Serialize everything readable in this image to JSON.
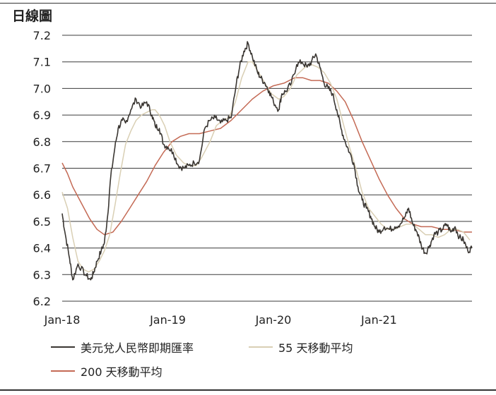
{
  "title": "日線圖",
  "chart_data": {
    "type": "line",
    "title": "日線圖",
    "xlabel": "",
    "ylabel": "",
    "xlim": [
      2018.0,
      2021.88
    ],
    "ylim": [
      6.2,
      7.2
    ],
    "y_ticks": [
      "7.2",
      "7.1",
      "7.0",
      "6.9",
      "6.8",
      "6.7",
      "6.6",
      "6.5",
      "6.4",
      "6.3",
      "6.2"
    ],
    "x_ticks": [
      {
        "label": "Jan-18",
        "x": 2018.0
      },
      {
        "label": "Jan-19",
        "x": 2019.0
      },
      {
        "label": "Jan-20",
        "x": 2020.0
      },
      {
        "label": "Jan-21",
        "x": 2021.0
      }
    ],
    "grid": "horizontal",
    "legend": "bottom",
    "series": [
      {
        "name": "美元兌人民幣即期匯率",
        "color": "#3a3632",
        "noise": 0.012,
        "points": [
          [
            2018.0,
            6.53
          ],
          [
            2018.03,
            6.45
          ],
          [
            2018.07,
            6.36
          ],
          [
            2018.1,
            6.28
          ],
          [
            2018.15,
            6.34
          ],
          [
            2018.22,
            6.3
          ],
          [
            2018.27,
            6.28
          ],
          [
            2018.3,
            6.31
          ],
          [
            2018.33,
            6.35
          ],
          [
            2018.37,
            6.39
          ],
          [
            2018.4,
            6.42
          ],
          [
            2018.43,
            6.52
          ],
          [
            2018.46,
            6.67
          ],
          [
            2018.5,
            6.78
          ],
          [
            2018.53,
            6.85
          ],
          [
            2018.57,
            6.88
          ],
          [
            2018.6,
            6.87
          ],
          [
            2018.65,
            6.92
          ],
          [
            2018.7,
            6.96
          ],
          [
            2018.75,
            6.93
          ],
          [
            2018.8,
            6.95
          ],
          [
            2018.85,
            6.9
          ],
          [
            2018.88,
            6.86
          ],
          [
            2018.92,
            6.85
          ],
          [
            2018.96,
            6.79
          ],
          [
            2019.0,
            6.78
          ],
          [
            2019.05,
            6.76
          ],
          [
            2019.1,
            6.71
          ],
          [
            2019.15,
            6.7
          ],
          [
            2019.2,
            6.71
          ],
          [
            2019.25,
            6.72
          ],
          [
            2019.3,
            6.73
          ],
          [
            2019.35,
            6.85
          ],
          [
            2019.4,
            6.88
          ],
          [
            2019.45,
            6.89
          ],
          [
            2019.5,
            6.87
          ],
          [
            2019.55,
            6.88
          ],
          [
            2019.6,
            6.89
          ],
          [
            2019.65,
            7.02
          ],
          [
            2019.68,
            7.08
          ],
          [
            2019.72,
            7.14
          ],
          [
            2019.76,
            7.17
          ],
          [
            2019.8,
            7.12
          ],
          [
            2019.85,
            7.06
          ],
          [
            2019.88,
            7.04
          ],
          [
            2019.92,
            7.02
          ],
          [
            2019.96,
            6.99
          ],
          [
            2020.0,
            6.95
          ],
          [
            2020.05,
            6.92
          ],
          [
            2020.08,
            6.98
          ],
          [
            2020.12,
            6.99
          ],
          [
            2020.17,
            7.02
          ],
          [
            2020.22,
            7.09
          ],
          [
            2020.27,
            7.1
          ],
          [
            2020.32,
            7.08
          ],
          [
            2020.36,
            7.1
          ],
          [
            2020.4,
            7.13
          ],
          [
            2020.44,
            7.08
          ],
          [
            2020.48,
            7.02
          ],
          [
            2020.52,
            7.0
          ],
          [
            2020.56,
            6.98
          ],
          [
            2020.6,
            6.92
          ],
          [
            2020.64,
            6.85
          ],
          [
            2020.68,
            6.8
          ],
          [
            2020.72,
            6.76
          ],
          [
            2020.76,
            6.72
          ],
          [
            2020.8,
            6.63
          ],
          [
            2020.84,
            6.58
          ],
          [
            2020.88,
            6.55
          ],
          [
            2020.92,
            6.52
          ],
          [
            2020.96,
            6.48
          ],
          [
            2021.0,
            6.46
          ],
          [
            2021.05,
            6.48
          ],
          [
            2021.1,
            6.47
          ],
          [
            2021.15,
            6.48
          ],
          [
            2021.2,
            6.49
          ],
          [
            2021.25,
            6.52
          ],
          [
            2021.28,
            6.55
          ],
          [
            2021.32,
            6.49
          ],
          [
            2021.36,
            6.46
          ],
          [
            2021.4,
            6.41
          ],
          [
            2021.44,
            6.38
          ],
          [
            2021.48,
            6.41
          ],
          [
            2021.52,
            6.45
          ],
          [
            2021.56,
            6.46
          ],
          [
            2021.6,
            6.47
          ],
          [
            2021.64,
            6.49
          ],
          [
            2021.68,
            6.46
          ],
          [
            2021.72,
            6.48
          ],
          [
            2021.76,
            6.44
          ],
          [
            2021.8,
            6.43
          ],
          [
            2021.84,
            6.39
          ],
          [
            2021.88,
            6.4
          ]
        ]
      },
      {
        "name": "55 天移動平均",
        "color": "#d9cfb4",
        "noise": 0,
        "points": [
          [
            2018.0,
            6.61
          ],
          [
            2018.05,
            6.55
          ],
          [
            2018.1,
            6.44
          ],
          [
            2018.15,
            6.35
          ],
          [
            2018.2,
            6.32
          ],
          [
            2018.25,
            6.31
          ],
          [
            2018.3,
            6.32
          ],
          [
            2018.35,
            6.35
          ],
          [
            2018.4,
            6.39
          ],
          [
            2018.45,
            6.45
          ],
          [
            2018.5,
            6.56
          ],
          [
            2018.55,
            6.68
          ],
          [
            2018.6,
            6.79
          ],
          [
            2018.65,
            6.84
          ],
          [
            2018.7,
            6.88
          ],
          [
            2018.75,
            6.9
          ],
          [
            2018.8,
            6.91
          ],
          [
            2018.85,
            6.92
          ],
          [
            2018.88,
            6.92
          ],
          [
            2018.92,
            6.9
          ],
          [
            2018.97,
            6.86
          ],
          [
            2019.02,
            6.8
          ],
          [
            2019.08,
            6.75
          ],
          [
            2019.15,
            6.72
          ],
          [
            2019.2,
            6.71
          ],
          [
            2019.27,
            6.71
          ],
          [
            2019.32,
            6.74
          ],
          [
            2019.4,
            6.8
          ],
          [
            2019.46,
            6.86
          ],
          [
            2019.52,
            6.88
          ],
          [
            2019.58,
            6.89
          ],
          [
            2019.64,
            6.95
          ],
          [
            2019.7,
            7.04
          ],
          [
            2019.76,
            7.1
          ],
          [
            2019.8,
            7.1
          ],
          [
            2019.86,
            7.06
          ],
          [
            2019.92,
            7.02
          ],
          [
            2019.98,
            6.98
          ],
          [
            2020.05,
            6.96
          ],
          [
            2020.1,
            6.97
          ],
          [
            2020.16,
            7.0
          ],
          [
            2020.22,
            7.05
          ],
          [
            2020.3,
            7.08
          ],
          [
            2020.36,
            7.09
          ],
          [
            2020.42,
            7.08
          ],
          [
            2020.48,
            7.06
          ],
          [
            2020.54,
            7.02
          ],
          [
            2020.6,
            6.96
          ],
          [
            2020.66,
            6.87
          ],
          [
            2020.72,
            6.78
          ],
          [
            2020.78,
            6.7
          ],
          [
            2020.84,
            6.61
          ],
          [
            2020.9,
            6.55
          ],
          [
            2020.96,
            6.52
          ],
          [
            2021.02,
            6.49
          ],
          [
            2021.08,
            6.47
          ],
          [
            2021.14,
            6.47
          ],
          [
            2021.2,
            6.48
          ],
          [
            2021.26,
            6.49
          ],
          [
            2021.32,
            6.49
          ],
          [
            2021.38,
            6.47
          ],
          [
            2021.44,
            6.45
          ],
          [
            2021.5,
            6.45
          ],
          [
            2021.56,
            6.44
          ],
          [
            2021.62,
            6.45
          ],
          [
            2021.68,
            6.47
          ],
          [
            2021.74,
            6.47
          ],
          [
            2021.8,
            6.46
          ],
          [
            2021.86,
            6.43
          ]
        ]
      },
      {
        "name": "200 天移動平均",
        "color": "#c46a55",
        "noise": 0,
        "points": [
          [
            2018.0,
            6.72
          ],
          [
            2018.05,
            6.68
          ],
          [
            2018.1,
            6.63
          ],
          [
            2018.18,
            6.57
          ],
          [
            2018.26,
            6.51
          ],
          [
            2018.33,
            6.47
          ],
          [
            2018.4,
            6.45
          ],
          [
            2018.48,
            6.46
          ],
          [
            2018.56,
            6.5
          ],
          [
            2018.64,
            6.55
          ],
          [
            2018.72,
            6.6
          ],
          [
            2018.8,
            6.65
          ],
          [
            2018.88,
            6.71
          ],
          [
            2018.96,
            6.76
          ],
          [
            2019.04,
            6.8
          ],
          [
            2019.12,
            6.82
          ],
          [
            2019.2,
            6.83
          ],
          [
            2019.3,
            6.83
          ],
          [
            2019.4,
            6.84
          ],
          [
            2019.5,
            6.85
          ],
          [
            2019.6,
            6.88
          ],
          [
            2019.7,
            6.92
          ],
          [
            2019.8,
            6.96
          ],
          [
            2019.9,
            6.99
          ],
          [
            2020.0,
            7.01
          ],
          [
            2020.1,
            7.02
          ],
          [
            2020.2,
            7.04
          ],
          [
            2020.28,
            7.04
          ],
          [
            2020.36,
            7.03
          ],
          [
            2020.44,
            7.03
          ],
          [
            2020.52,
            7.02
          ],
          [
            2020.6,
            6.99
          ],
          [
            2020.68,
            6.95
          ],
          [
            2020.76,
            6.88
          ],
          [
            2020.84,
            6.8
          ],
          [
            2020.92,
            6.73
          ],
          [
            2021.0,
            6.66
          ],
          [
            2021.08,
            6.6
          ],
          [
            2021.16,
            6.55
          ],
          [
            2021.24,
            6.51
          ],
          [
            2021.32,
            6.49
          ],
          [
            2021.4,
            6.48
          ],
          [
            2021.5,
            6.48
          ],
          [
            2021.6,
            6.47
          ],
          [
            2021.7,
            6.47
          ],
          [
            2021.8,
            6.46
          ],
          [
            2021.88,
            6.46
          ]
        ]
      }
    ]
  }
}
